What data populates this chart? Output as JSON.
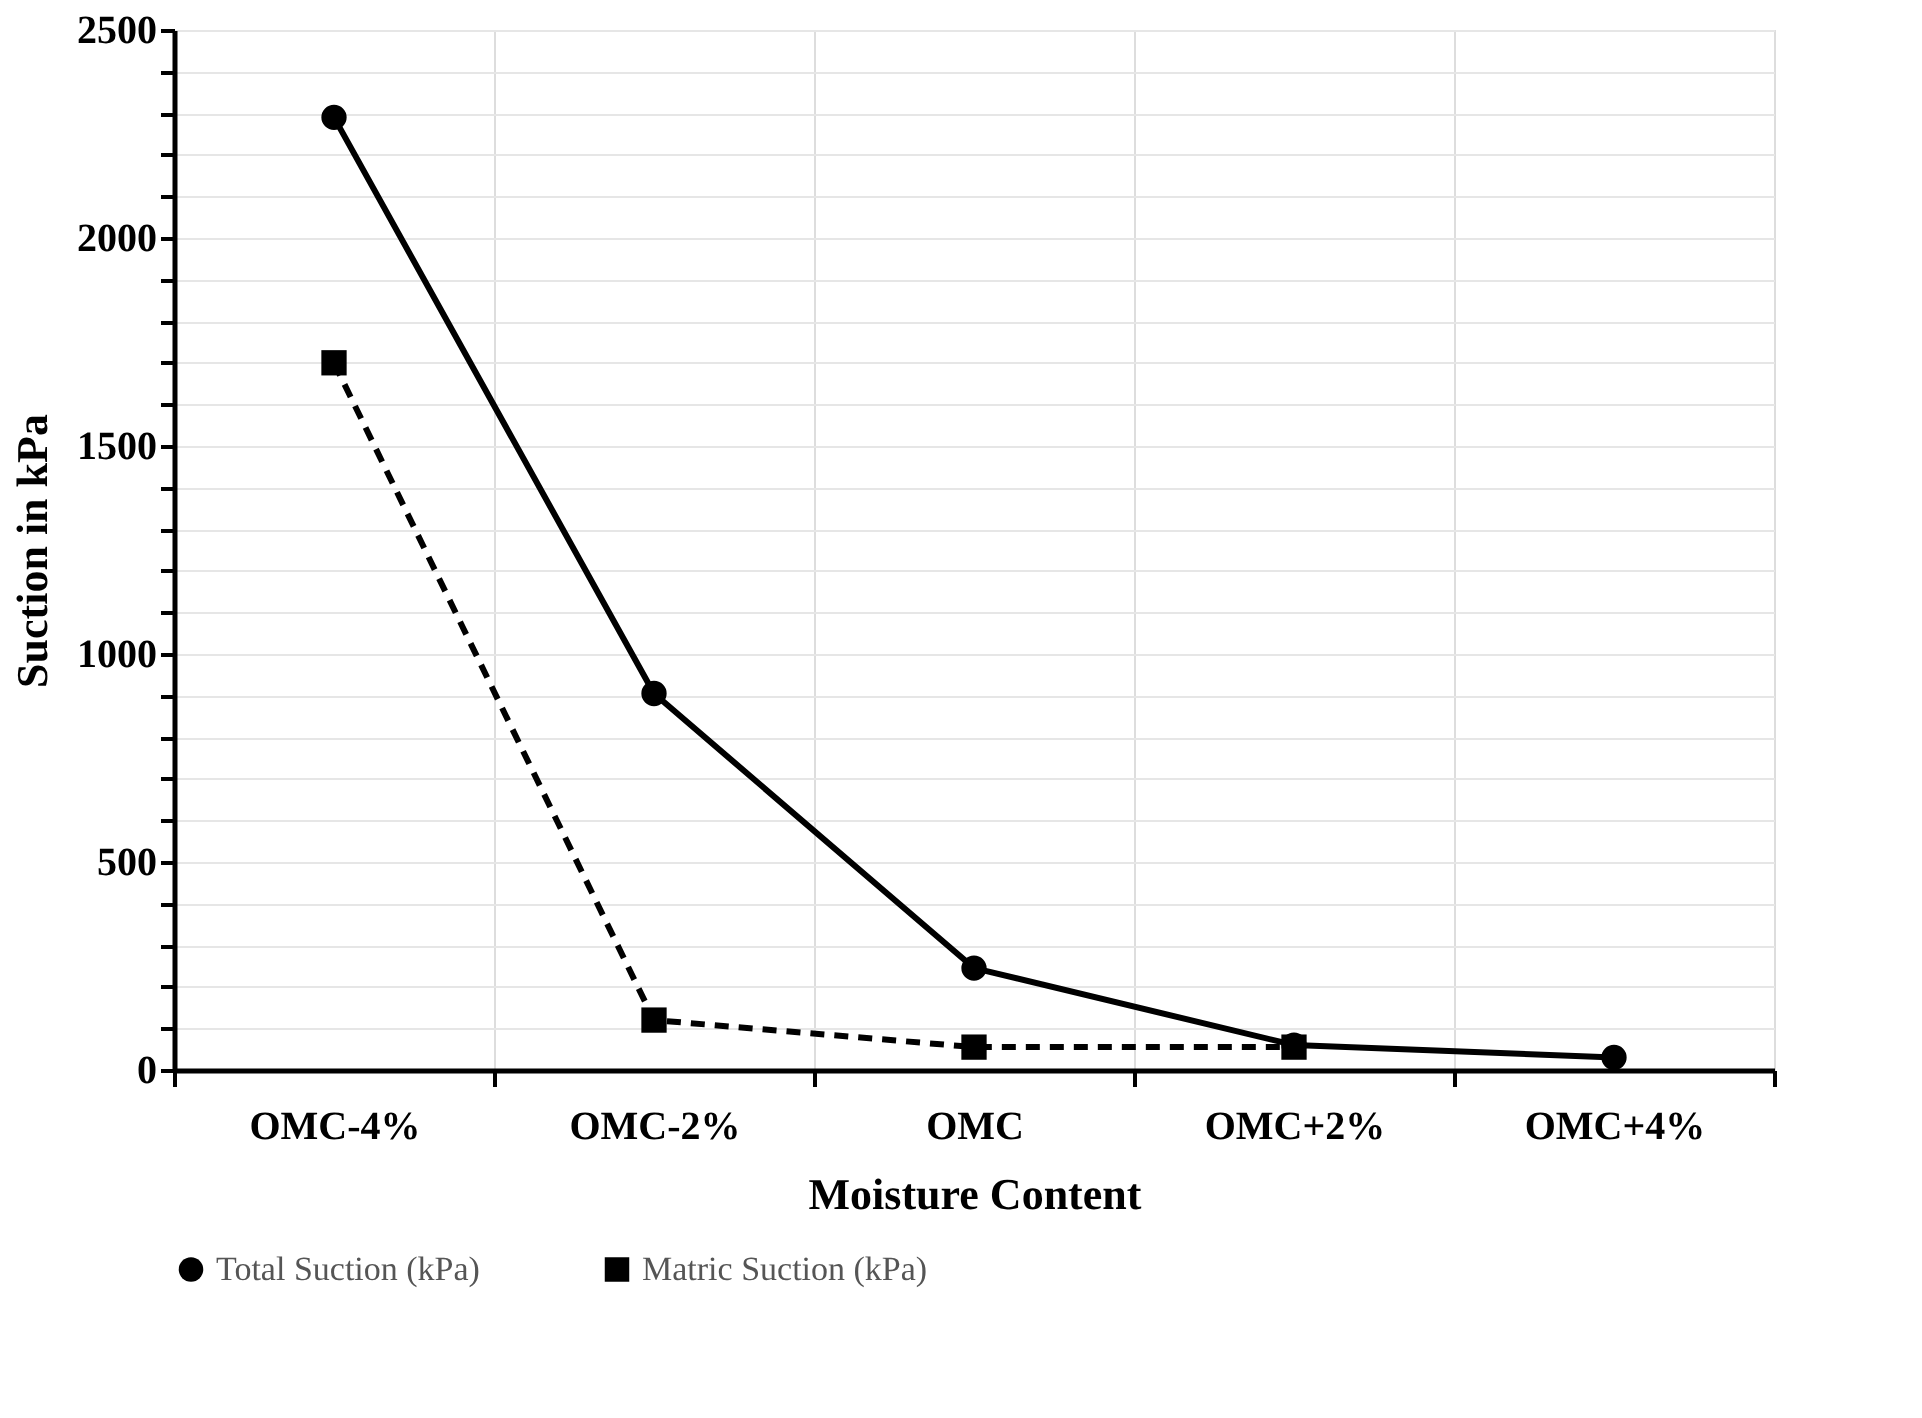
{
  "chart_data": {
    "type": "line",
    "xlabel": "Moisture Content",
    "ylabel": "Suction in kPa",
    "categories": [
      "OMC-4%",
      "OMC-2%",
      "OMC",
      "OMC+2%",
      "OMC+4%"
    ],
    "series": [
      {
        "name": "Total Suction (kPa)",
        "color": "#000000",
        "values": [
          2290,
          905,
          245,
          60,
          30
        ],
        "marker": "circle",
        "line_style": "solid"
      },
      {
        "name": "Matric Suction (kPa)",
        "color": "#000000",
        "values": [
          1700,
          120,
          55,
          55,
          null
        ],
        "marker": "square",
        "line_style": "dashed"
      }
    ],
    "ylim": [
      0,
      2500
    ],
    "yticks": [
      0,
      {
        "value": 100,
        "label": null
      },
      {
        "value": 200,
        "label": null
      },
      {
        "value": 300,
        "label": null
      },
      {
        "value": 400,
        "label": null
      },
      500,
      {
        "value": 600,
        "label": null
      },
      {
        "value": 700,
        "label": null
      },
      {
        "value": 800,
        "label": null
      },
      {
        "value": 900,
        "label": null
      },
      1000,
      {
        "value": 1100,
        "label": null
      },
      {
        "value": 1200,
        "label": null
      },
      {
        "value": 1300,
        "label": null
      },
      {
        "value": 1400,
        "label": null
      },
      1500,
      {
        "value": 1600,
        "label": null
      },
      {
        "value": 1700,
        "label": null
      },
      {
        "value": 1800,
        "label": null
      },
      {
        "value": 1900,
        "label": null
      },
      2000,
      {
        "value": 2100,
        "label": null
      },
      {
        "value": 2200,
        "label": null
      },
      {
        "value": 2300,
        "label": null
      },
      {
        "value": 2400,
        "label": null
      },
      2500
    ],
    "grid": true,
    "legend": "bottom"
  }
}
